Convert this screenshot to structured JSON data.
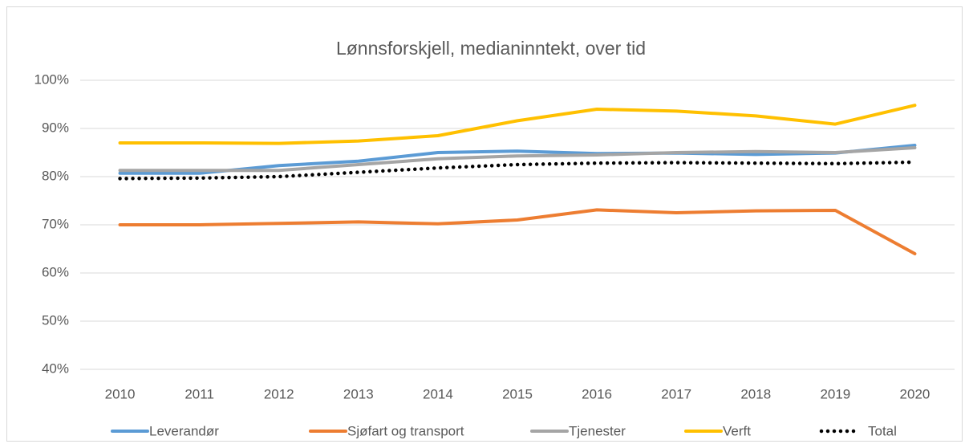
{
  "chart_data": {
    "type": "line",
    "title": "Lønnsforskjell, medianinntekt, over tid",
    "categories": [
      "2010",
      "2011",
      "2012",
      "2013",
      "2014",
      "2015",
      "2016",
      "2017",
      "2018",
      "2019",
      "2020"
    ],
    "series": [
      {
        "name": "Leverandør",
        "color": "#5b9bd5",
        "values": [
          80.7,
          80.7,
          82.3,
          83.2,
          85,
          85.3,
          84.8,
          84.9,
          84.6,
          84.9,
          86.5
        ]
      },
      {
        "name": "Sjøfart og transport",
        "color": "#ed7d31",
        "values": [
          70,
          70,
          70.3,
          70.6,
          70.2,
          71,
          73.1,
          72.5,
          72.9,
          73,
          64
        ]
      },
      {
        "name": "Tjenester",
        "color": "#a5a5a5",
        "values": [
          81.3,
          81.3,
          81.3,
          82.5,
          83.7,
          84.3,
          84.5,
          85,
          85.2,
          85,
          86
        ]
      },
      {
        "name": "Verft",
        "color": "#ffc000",
        "values": [
          87,
          87,
          86.9,
          87.4,
          88.5,
          91.6,
          94,
          93.6,
          92.6,
          90.9,
          94.8
        ]
      },
      {
        "name": "Total",
        "color": "#000000",
        "dash": "dotted",
        "values": [
          79.6,
          79.7,
          80,
          80.9,
          81.8,
          82.5,
          82.8,
          82.9,
          82.8,
          82.7,
          83
        ]
      }
    ],
    "ylim": [
      40,
      100
    ],
    "yticks": [
      {
        "value": 40,
        "label": "40%"
      },
      {
        "value": 50,
        "label": "50%"
      },
      {
        "value": 60,
        "label": "60%"
      },
      {
        "value": 70,
        "label": "70%"
      },
      {
        "value": 80,
        "label": "80%"
      },
      {
        "value": 90,
        "label": "90%"
      },
      {
        "value": 100,
        "label": "100%"
      }
    ],
    "grid": true,
    "legend": "bottom"
  }
}
